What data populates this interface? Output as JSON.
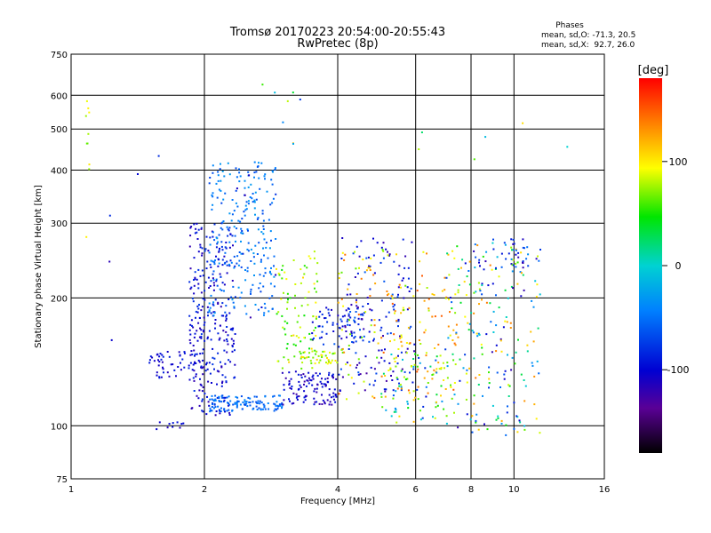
{
  "header": {
    "title": "Tromsø 20170223 20:54:00-20:55:43",
    "subtitle": "RwPretec (8p)",
    "stats_title": "Phases",
    "stats_o": "mean, sd,O: -71.3, 20.5",
    "stats_x": "mean, sd,X:  92.7, 26.0"
  },
  "colorbar": {
    "label": "[deg]",
    "ticks": [
      {
        "value": 100,
        "label": "100"
      },
      {
        "value": 0,
        "label": "0"
      },
      {
        "value": -100,
        "label": "-100"
      }
    ],
    "range": [
      -180,
      180
    ]
  },
  "chart_data": {
    "type": "scatter",
    "xlabel": "Frequency [MHz]",
    "ylabel": "Stationary phase Virtual Height [km]",
    "xscale": "log",
    "yscale": "log",
    "xlim": [
      1,
      16
    ],
    "ylim": [
      75,
      750
    ],
    "grid": true,
    "xticks": [
      1,
      2,
      4,
      6,
      8,
      10,
      16
    ],
    "yticks": [
      75,
      100,
      200,
      300,
      400,
      500,
      600,
      750
    ],
    "color_by": "phase [deg]",
    "clusters": [
      {
        "x": [
          1.85,
          2.35
        ],
        "y": [
          105,
          300
        ],
        "phase": [
          -120,
          -75
        ],
        "n": 280
      },
      {
        "x": [
          2.05,
          2.9
        ],
        "y": [
          180,
          420
        ],
        "phase": [
          -75,
          -30
        ],
        "n": 240
      },
      {
        "x": [
          2.05,
          3.0
        ],
        "y": [
          108,
          118
        ],
        "phase": [
          -70,
          -40
        ],
        "n": 120
      },
      {
        "x": [
          3.0,
          4.0
        ],
        "y": [
          112,
          135
        ],
        "phase": [
          -125,
          -85
        ],
        "n": 110
      },
      {
        "x": [
          1.5,
          2.0
        ],
        "y": [
          128,
          150
        ],
        "phase": [
          -115,
          -85
        ],
        "n": 60
      },
      {
        "x": [
          1.55,
          1.8
        ],
        "y": [
          98,
          102
        ],
        "phase": [
          -115,
          -90
        ],
        "n": 10
      },
      {
        "x": [
          2.9,
          3.6
        ],
        "y": [
          135,
          260
        ],
        "phase": [
          40,
          110
        ],
        "n": 90
      },
      {
        "x": [
          3.3,
          4.0
        ],
        "y": [
          140,
          150
        ],
        "phase": [
          60,
          110
        ],
        "n": 40
      },
      {
        "x": [
          3.5,
          4.6
        ],
        "y": [
          155,
          190
        ],
        "phase": [
          -110,
          -60
        ],
        "n": 60
      },
      {
        "x": [
          4.0,
          6.0
        ],
        "y": [
          120,
          280
        ],
        "phase": [
          -130,
          -60
        ],
        "n": 160
      },
      {
        "x": [
          4.0,
          7.5
        ],
        "y": [
          115,
          260
        ],
        "phase": [
          60,
          150
        ],
        "n": 170
      },
      {
        "x": [
          5.0,
          7.0
        ],
        "y": [
          100,
          150
        ],
        "phase": [
          -110,
          130
        ],
        "n": 80
      },
      {
        "x": [
          7.0,
          11.5
        ],
        "y": [
          95,
          270
        ],
        "phase": [
          -120,
          140
        ],
        "n": 220
      },
      {
        "x": [
          8.8,
          11.0
        ],
        "y": [
          235,
          275
        ],
        "phase": [
          -120,
          -50
        ],
        "n": 25
      },
      {
        "x": [
          1.08,
          1.1
        ],
        "y": [
          270,
          620
        ],
        "phase": [
          60,
          110
        ],
        "n": 10
      },
      {
        "x": [
          2.6,
          3.4
        ],
        "y": [
          460,
          640
        ],
        "phase": [
          -120,
          150
        ],
        "n": 8
      },
      {
        "x": [
          1.2,
          2.9
        ],
        "y": [
          120,
          470
        ],
        "phase": [
          -125,
          -80
        ],
        "n": 14
      },
      {
        "x": [
          6.0,
          13.5
        ],
        "y": [
          380,
          640
        ],
        "phase": [
          -120,
          140
        ],
        "n": 6
      }
    ]
  }
}
